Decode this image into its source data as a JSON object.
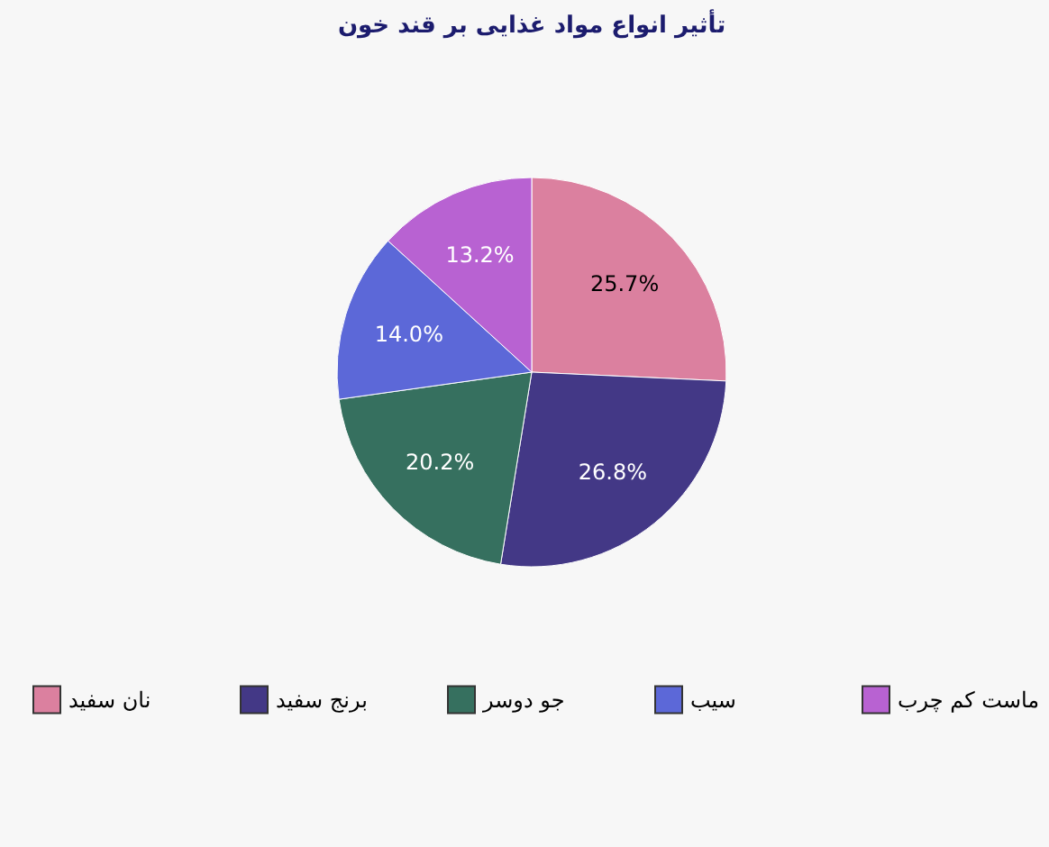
{
  "chart_data": {
    "type": "pie",
    "title": "تأثیر انواع مواد غذایی بر قند خون",
    "categories": [
      "نان سفید",
      "برنج سفید",
      "جو دوسر",
      "سیب",
      "ماست کم چرب"
    ],
    "values": [
      25.7,
      26.8,
      20.2,
      14.0,
      13.2
    ],
    "colors": [
      "#db809f",
      "#433886",
      "#36705f",
      "#5c68d8",
      "#b862d2"
    ],
    "value_labels": [
      "25.7%",
      "26.8%",
      "20.2%",
      "14.0%",
      "13.2%"
    ],
    "legend": "bottom"
  }
}
